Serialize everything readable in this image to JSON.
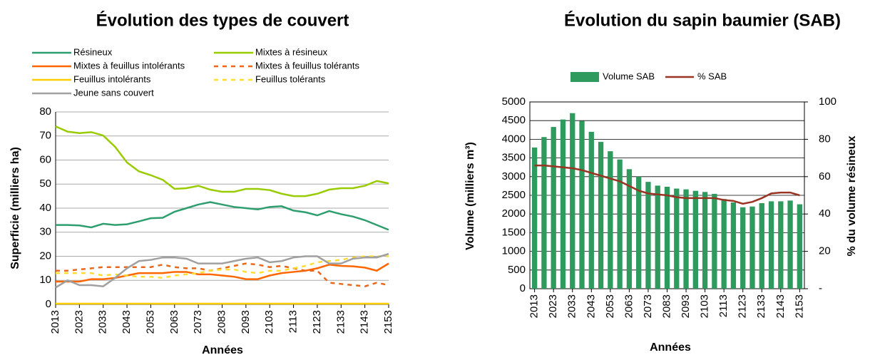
{
  "chart_data": [
    {
      "type": "line",
      "title": "Évolution des types de couvert",
      "ylabel": "Superficie (milliers ha)",
      "xlabel": "Années",
      "x": [
        2013,
        2018,
        2023,
        2028,
        2033,
        2038,
        2043,
        2048,
        2053,
        2058,
        2063,
        2068,
        2073,
        2078,
        2083,
        2088,
        2093,
        2098,
        2103,
        2108,
        2113,
        2118,
        2123,
        2128,
        2133,
        2138,
        2143,
        2148,
        2153
      ],
      "xlim": [
        2013,
        2153
      ],
      "xticks": [
        2013,
        2023,
        2033,
        2043,
        2053,
        2063,
        2073,
        2083,
        2093,
        2103,
        2113,
        2123,
        2133,
        2143,
        2153
      ],
      "ylim": [
        0,
        80
      ],
      "yticks": [
        0,
        10,
        20,
        30,
        40,
        50,
        60,
        70,
        80
      ],
      "grid": true,
      "series": [
        {
          "name": "Résineux",
          "color": "#2e9e6e",
          "dashed": false,
          "values": [
            33,
            33,
            32.8,
            32,
            33.5,
            33,
            33.3,
            34.5,
            35.8,
            36,
            38.5,
            40,
            41.5,
            42.5,
            41.5,
            40.5,
            40,
            39.5,
            40.5,
            40.8,
            39,
            38.3,
            37,
            38.8,
            37.5,
            36.5,
            35,
            33,
            31
          ]
        },
        {
          "name": "Mixtes à résineux",
          "color": "#99cc00",
          "dashed": false,
          "values": [
            74,
            71.8,
            71.2,
            71.6,
            70.2,
            65.5,
            59,
            55.3,
            53.7,
            51.8,
            48,
            48.3,
            49.3,
            47.7,
            46.8,
            46.8,
            48,
            48,
            47.5,
            46,
            45,
            45,
            46,
            47.7,
            48.3,
            48.3,
            49.3,
            51.3,
            50.3
          ]
        },
        {
          "name": "Mixtes à feuillus intolérants",
          "color": "#ff6600",
          "dashed": false,
          "values": [
            9.5,
            9.5,
            9.5,
            10.5,
            10.5,
            11,
            12,
            13,
            13,
            13,
            13.5,
            13.5,
            12.5,
            12.5,
            12,
            11.5,
            10.5,
            10.5,
            12,
            13,
            13.5,
            14,
            15,
            16.5,
            16,
            15.8,
            15.3,
            14,
            17
          ]
        },
        {
          "name": "Mixtes à feuillus tolérants",
          "color": "#e8671a",
          "dashed": true,
          "values": [
            14,
            14,
            14.5,
            15,
            15.5,
            15.5,
            15.5,
            15.5,
            15.5,
            16.5,
            15.5,
            15,
            15,
            14,
            15,
            16,
            17,
            16.5,
            15.5,
            16,
            15,
            14,
            14,
            9,
            8.5,
            8,
            7.5,
            9,
            8
          ]
        },
        {
          "name": "Feuillus intolérants",
          "color": "#ffcc00",
          "dashed": false,
          "values": [
            0.3,
            0.3,
            0.3,
            0.3,
            0.3,
            0.3,
            0.3,
            0.3,
            0.3,
            0.3,
            0.3,
            0.3,
            0.3,
            0.3,
            0.3,
            0.3,
            0.3,
            0.3,
            0.3,
            0.3,
            0.3,
            0.3,
            0.3,
            0.3,
            0.3,
            0.3,
            0.3,
            0.3,
            0.3
          ]
        },
        {
          "name": "Feuillus tolérants",
          "color": "#ffdd33",
          "dashed": true,
          "values": [
            13,
            13,
            13,
            13,
            12,
            12.5,
            12,
            11.5,
            11.5,
            11,
            12,
            12.5,
            13,
            14,
            14.5,
            14.5,
            13.5,
            13,
            14,
            14,
            15,
            16,
            17.5,
            18,
            18.5,
            19.5,
            20,
            20,
            20
          ]
        },
        {
          "name": "Jeune sans couvert",
          "color": "#a0a0a0",
          "dashed": false,
          "values": [
            7,
            10,
            8,
            8,
            7.5,
            11,
            15,
            18,
            18.5,
            19.5,
            19.5,
            19,
            17,
            17,
            17,
            18,
            19,
            19.5,
            17.5,
            18,
            19.5,
            20,
            20,
            17,
            17,
            19,
            19.5,
            19.5,
            21
          ]
        }
      ]
    },
    {
      "type": "bar",
      "title": "Évolution du sapin baumier (SAB)",
      "ylabel": "Volume (milliers m³)",
      "y2label": "% du volume résineux",
      "xlabel": "Années",
      "x": [
        2013,
        2018,
        2023,
        2028,
        2033,
        2038,
        2043,
        2048,
        2053,
        2058,
        2063,
        2068,
        2073,
        2078,
        2083,
        2088,
        2093,
        2098,
        2103,
        2108,
        2113,
        2118,
        2123,
        2128,
        2133,
        2138,
        2143,
        2148,
        2153
      ],
      "xlim": [
        2010.5,
        2155.5
      ],
      "xticks": [
        2013,
        2023,
        2033,
        2043,
        2053,
        2063,
        2073,
        2083,
        2093,
        2103,
        2113,
        2123,
        2133,
        2143,
        2153
      ],
      "ylim": [
        0,
        5000
      ],
      "yticks": [
        0,
        500,
        1000,
        1500,
        2000,
        2500,
        3000,
        3500,
        4000,
        4500,
        5000
      ],
      "y2lim": [
        0,
        100
      ],
      "y2ticks": [
        {
          "value": 0,
          "label": "-"
        },
        20,
        40,
        60,
        80,
        100
      ],
      "grid": true,
      "series": [
        {
          "name": "Volume SAB",
          "color": "#2e9a5e",
          "values": [
            3780,
            4060,
            4330,
            4530,
            4700,
            4490,
            4200,
            3930,
            3680,
            3460,
            3200,
            3000,
            2860,
            2760,
            2730,
            2680,
            2660,
            2620,
            2590,
            2540,
            2400,
            2310,
            2180,
            2200,
            2290,
            2340,
            2340,
            2360,
            2260
          ]
        },
        {
          "name": "% SAB",
          "color": "#993322",
          "axis": "y2",
          "values": [
            66,
            66,
            65.5,
            65,
            64.5,
            63.5,
            62,
            60.5,
            59,
            57.5,
            55,
            52.5,
            51,
            50.5,
            50,
            49,
            48.5,
            48.5,
            48.5,
            48.5,
            47.5,
            47,
            45.5,
            46.5,
            48.5,
            51,
            51.5,
            51.5,
            50
          ]
        }
      ]
    }
  ]
}
